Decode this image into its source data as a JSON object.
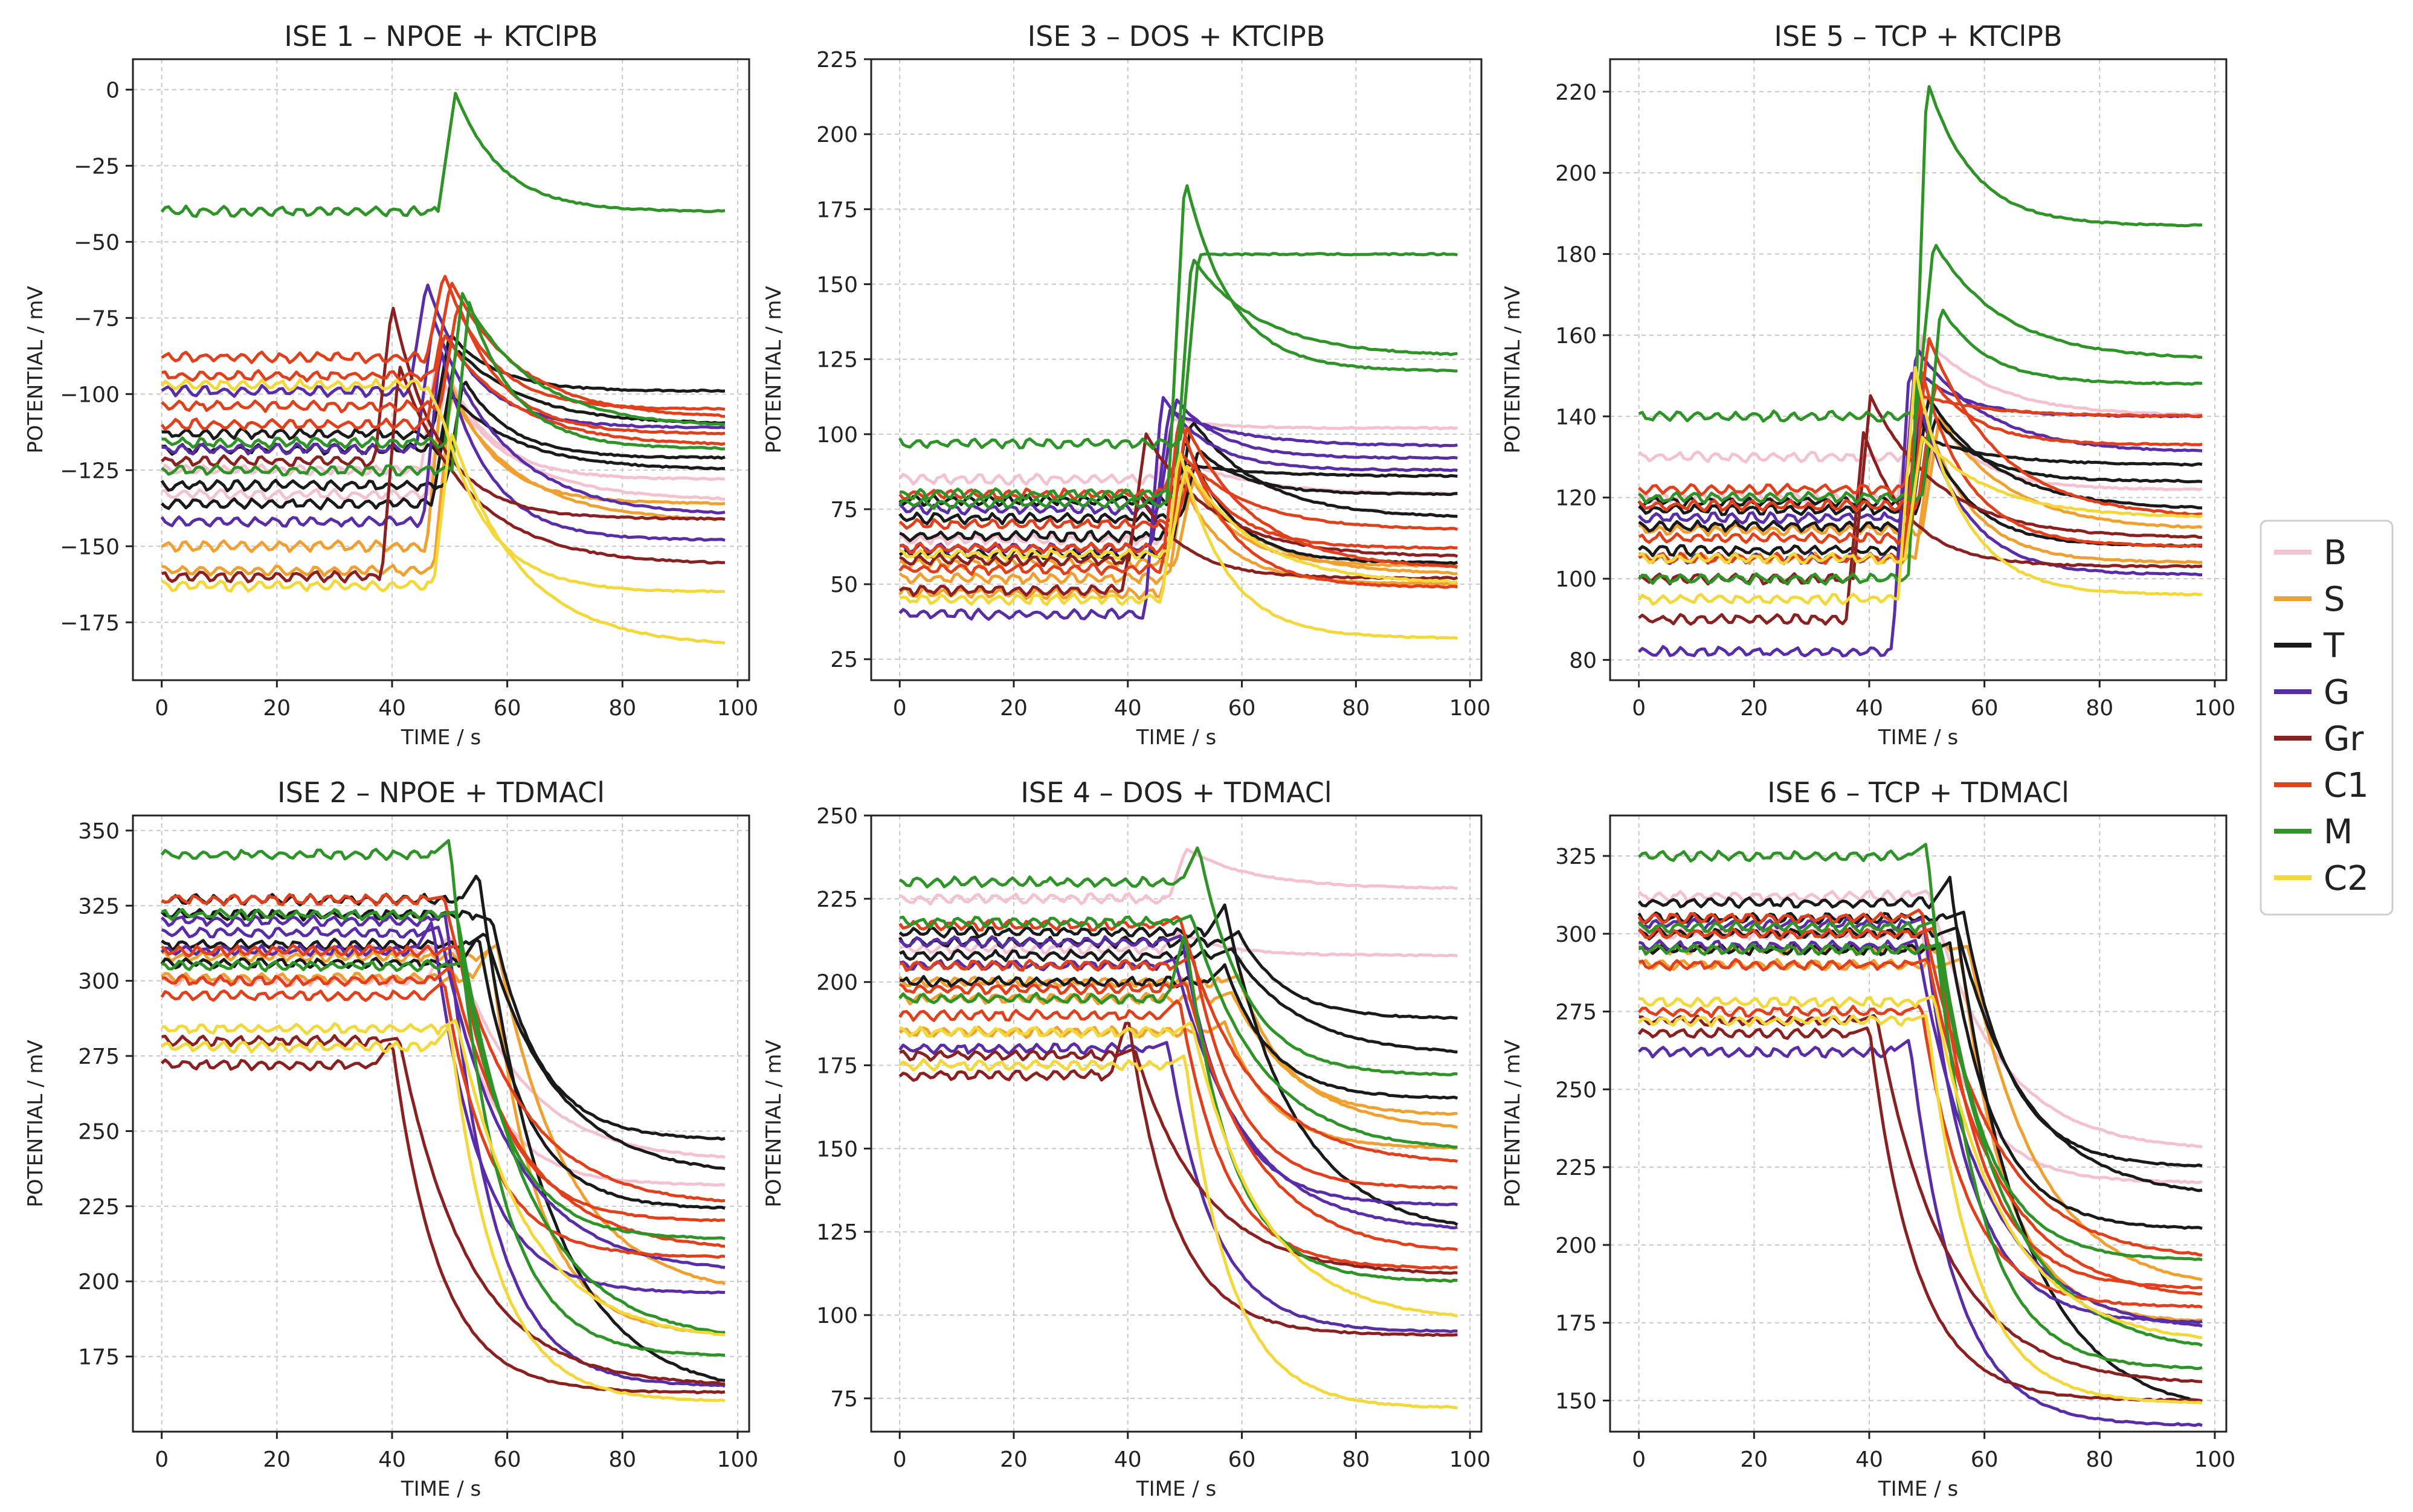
{
  "legend": {
    "items": [
      {
        "label": "B",
        "color": "#F4C2CF"
      },
      {
        "label": "S",
        "color": "#F0A030"
      },
      {
        "label": "T",
        "color": "#1A1A1A"
      },
      {
        "label": "G",
        "color": "#5A2DA8"
      },
      {
        "label": "Gr",
        "color": "#8B2020"
      },
      {
        "label": "C1",
        "color": "#E0401C"
      },
      {
        "label": "M",
        "color": "#2E9428"
      },
      {
        "label": "C2",
        "color": "#F2D83A"
      }
    ]
  },
  "chart_data": [
    {
      "type": "line",
      "title": "ISE 1 – NPOE + KTClPB",
      "xlabel": "TIME / s",
      "ylabel": "POTENTIAL / mV",
      "xlim": [
        -5,
        102
      ],
      "ylim": [
        -194,
        10
      ],
      "xticks": [
        0,
        20,
        40,
        60,
        80,
        100
      ],
      "yticks": [
        0,
        -25,
        -50,
        -75,
        -100,
        -125,
        -150,
        -175
      ],
      "grid": true,
      "series": [
        {
          "name": "B",
          "pre": [
            -125,
            -133
          ],
          "tjump": 46,
          "peak": [
            -85,
            -97
          ],
          "final": [
            -128,
            -135
          ]
        },
        {
          "name": "S",
          "pre": [
            -150,
            -158
          ],
          "tjump": 47,
          "peak": [
            -90,
            -100
          ],
          "final": [
            -136,
            -142
          ]
        },
        {
          "name": "T",
          "pre": [
            -113,
            -118,
            -130,
            -136
          ],
          "tjump": 48,
          "peak": [
            -80,
            -85,
            -95,
            -100
          ],
          "final": [
            -99,
            -110,
            -121,
            -125
          ]
        },
        {
          "name": "G",
          "pre": [
            -99,
            -118,
            -142
          ],
          "tjump": 44,
          "peak": [
            -63,
            -75,
            -85
          ],
          "final": [
            -111,
            -140,
            -148
          ]
        },
        {
          "name": "Gr",
          "pre": [
            -122,
            -160
          ],
          "tjump": 38,
          "peak": [
            -70,
            -90
          ],
          "final": [
            -141,
            -156
          ]
        },
        {
          "name": "C1",
          "pre": [
            -88,
            -94,
            -104,
            -110
          ],
          "tjump": 47,
          "peak": [
            -60,
            -63,
            -70,
            -80
          ],
          "final": [
            -105,
            -108,
            -113,
            -117
          ]
        },
        {
          "name": "M",
          "pre": [
            -40,
            -116,
            -125
          ],
          "tjump": 49,
          "peak": [
            -1,
            -67,
            -70
          ],
          "final": [
            -40,
            -111,
            -118
          ]
        },
        {
          "name": "C2",
          "pre": [
            -97,
            -163
          ],
          "tjump": 47,
          "peak": [
            -109,
            -112
          ],
          "final": [
            -165,
            -183
          ]
        }
      ]
    },
    {
      "type": "line",
      "title": "ISE 3 – DOS + KTClPB",
      "xlabel": "TIME / s",
      "ylabel": "POTENTIAL / mV",
      "xlim": [
        -5,
        102
      ],
      "ylim": [
        18,
        225
      ],
      "xticks": [
        0,
        20,
        40,
        60,
        80,
        100
      ],
      "yticks": [
        25,
        50,
        75,
        100,
        125,
        150,
        175,
        200,
        225
      ],
      "grid": true,
      "series": [
        {
          "name": "B",
          "pre": [
            85,
            65
          ],
          "tjump": 46,
          "peak": [
            105,
            92
          ],
          "final": [
            102,
            80
          ]
        },
        {
          "name": "S",
          "pre": [
            47,
            52,
            57
          ],
          "tjump": 47,
          "peak": [
            86,
            88,
            85
          ],
          "final": [
            50,
            53,
            56
          ]
        },
        {
          "name": "T",
          "pre": [
            60,
            66,
            72,
            78
          ],
          "tjump": 48,
          "peak": [
            99,
            105,
            95,
            90
          ],
          "final": [
            57,
            72,
            80,
            86
          ]
        },
        {
          "name": "G",
          "pre": [
            40,
            62,
            75
          ],
          "tjump": 44,
          "peak": [
            113,
            108,
            112
          ],
          "final": [
            88,
            96,
            92
          ]
        },
        {
          "name": "Gr",
          "pre": [
            48,
            58
          ],
          "tjump": 40,
          "peak": [
            80,
            100
          ],
          "final": [
            52,
            59
          ]
        },
        {
          "name": "C1",
          "pre": [
            55,
            62,
            70,
            80
          ],
          "tjump": 47,
          "peak": [
            107,
            103,
            90,
            94
          ],
          "final": [
            49,
            55,
            62,
            68
          ]
        },
        {
          "name": "M",
          "pre": [
            77,
            80,
            97
          ],
          "tjump": 48,
          "peak": [
            186,
            159,
            160
          ],
          "final": [
            121,
            126,
            160
          ]
        },
        {
          "name": "C2",
          "pre": [
            45,
            60
          ],
          "tjump": 47,
          "peak": [
            95,
            90
          ],
          "final": [
            32,
            50
          ]
        }
      ]
    },
    {
      "type": "line",
      "title": "ISE 5 – TCP + KTClPB",
      "xlabel": "TIME / s",
      "ylabel": "POTENTIAL / mV",
      "xlim": [
        -5,
        102
      ],
      "ylim": [
        75,
        228
      ],
      "xticks": [
        0,
        20,
        40,
        60,
        80,
        100
      ],
      "yticks": [
        80,
        100,
        120,
        140,
        160,
        180,
        200,
        220
      ],
      "grid": true,
      "series": [
        {
          "name": "B",
          "pre": [
            120,
            130
          ],
          "tjump": 46,
          "peak": [
            150,
            160
          ],
          "final": [
            122,
            140
          ]
        },
        {
          "name": "S",
          "pre": [
            105,
            112
          ],
          "tjump": 49,
          "peak": [
            135,
            140
          ],
          "final": [
            104,
            112
          ]
        },
        {
          "name": "T",
          "pre": [
            107,
            113,
            117,
            119
          ],
          "tjump": 47,
          "peak": [
            140,
            145,
            140,
            135
          ],
          "final": [
            108,
            117,
            124,
            128
          ]
        },
        {
          "name": "G",
          "pre": [
            82,
            105,
            115
          ],
          "tjump": 45,
          "peak": [
            153,
            157,
            150
          ],
          "final": [
            101,
            131,
            140
          ]
        },
        {
          "name": "Gr",
          "pre": [
            90,
            100
          ],
          "tjump": 37,
          "peak": [
            136,
            145
          ],
          "final": [
            103,
            110
          ]
        },
        {
          "name": "C1",
          "pre": [
            105,
            110,
            118,
            122
          ],
          "tjump": 47,
          "peak": [
            152,
            160,
            148,
            145
          ],
          "final": [
            108,
            115,
            133,
            140
          ]
        },
        {
          "name": "M",
          "pre": [
            100,
            140,
            120
          ],
          "tjump": 48,
          "peak": [
            223,
            183,
            167
          ],
          "final": [
            187,
            154,
            148
          ]
        },
        {
          "name": "C2",
          "pre": [
            95,
            105
          ],
          "tjump": 46,
          "peak": [
            152,
            135
          ],
          "final": [
            96,
            115
          ]
        }
      ]
    },
    {
      "type": "line",
      "title": "ISE 2 – NPOE + TDMACl",
      "xlabel": "TIME / s",
      "ylabel": "POTENTIAL / mV",
      "xlim": [
        -5,
        102
      ],
      "ylim": [
        150,
        355
      ],
      "xticks": [
        0,
        20,
        40,
        60,
        80,
        100
      ],
      "yticks": [
        175,
        200,
        225,
        250,
        275,
        300,
        325,
        350
      ],
      "grid": true,
      "series": [
        {
          "name": "B",
          "pre": [
            300,
            310
          ],
          "tjump": 47,
          "peak": [
            312,
            315
          ],
          "final": [
            232,
            240
          ]
        },
        {
          "name": "S",
          "pre": [
            301,
            308
          ],
          "tjump": 55,
          "peak": [
            311,
            312
          ],
          "final": [
            182,
            195
          ]
        },
        {
          "name": "T",
          "pre": [
            306,
            312,
            322,
            327
          ],
          "tjump": 53,
          "peak": [
            315,
            316,
            320,
            336
          ],
          "final": [
            224,
            235,
            247,
            162
          ]
        },
        {
          "name": "G",
          "pre": [
            310,
            316,
            320
          ],
          "tjump": 45,
          "peak": [
            320,
            318,
            322
          ],
          "final": [
            196,
            203,
            165
          ]
        },
        {
          "name": "Gr",
          "pre": [
            272,
            280
          ],
          "tjump": 38,
          "peak": [
            280,
            281
          ],
          "final": [
            163,
            165
          ]
        },
        {
          "name": "C1",
          "pre": [
            295,
            300,
            310,
            327
          ],
          "tjump": 47,
          "peak": [
            300,
            305,
            312,
            328
          ],
          "final": [
            208,
            210,
            220,
            225
          ]
        },
        {
          "name": "M",
          "pre": [
            342,
            322,
            305
          ],
          "tjump": 48,
          "peak": [
            347,
            323,
            306
          ],
          "final": [
            175,
            180,
            214
          ]
        },
        {
          "name": "C2",
          "pre": [
            278,
            284
          ],
          "tjump": 48,
          "peak": [
            285,
            287
          ],
          "final": [
            160,
            180
          ]
        }
      ]
    },
    {
      "type": "line",
      "title": "ISE 4 – DOS + TDMACl",
      "xlabel": "TIME / s",
      "ylabel": "POTENTIAL / mV",
      "xlim": [
        -5,
        102
      ],
      "ylim": [
        65,
        250
      ],
      "xticks": [
        0,
        20,
        40,
        60,
        80,
        100
      ],
      "yticks": [
        75,
        100,
        125,
        150,
        175,
        200,
        225,
        250
      ],
      "grid": true,
      "series": [
        {
          "name": "B",
          "pre": [
            210,
            225
          ],
          "tjump": 47,
          "peak": [
            215,
            240
          ],
          "final": [
            208,
            228
          ]
        },
        {
          "name": "S",
          "pre": [
            185,
            195,
            200
          ],
          "tjump": 55,
          "peak": [
            188,
            197,
            202
          ],
          "final": [
            150,
            155,
            160
          ]
        },
        {
          "name": "T",
          "pre": [
            200,
            208,
            212,
            215
          ],
          "tjump": 55,
          "peak": [
            205,
            210,
            215,
            223
          ],
          "final": [
            165,
            178,
            189,
            124
          ]
        },
        {
          "name": "G",
          "pre": [
            180,
            205,
            212
          ],
          "tjump": 45,
          "peak": [
            182,
            207,
            214
          ],
          "final": [
            95,
            125,
            133
          ]
        },
        {
          "name": "Gr",
          "pre": [
            172,
            178
          ],
          "tjump": 38,
          "peak": [
            190,
            180
          ],
          "final": [
            94,
            112
          ]
        },
        {
          "name": "C1",
          "pre": [
            190,
            198,
            205,
            217
          ],
          "tjump": 47,
          "peak": [
            195,
            200,
            208,
            220
          ],
          "final": [
            114,
            118,
            138,
            145
          ]
        },
        {
          "name": "M",
          "pre": [
            195,
            218,
            230
          ],
          "tjump": 48,
          "peak": [
            215,
            220,
            241
          ],
          "final": [
            110,
            149,
            172
          ]
        },
        {
          "name": "C2",
          "pre": [
            175,
            185
          ],
          "tjump": 48,
          "peak": [
            178,
            188
          ],
          "final": [
            72,
            98
          ]
        }
      ]
    },
    {
      "type": "line",
      "title": "ISE 6 – TCP + TDMACl",
      "xlabel": "TIME / s",
      "ylabel": "POTENTIAL / mV",
      "xlim": [
        -5,
        102
      ],
      "ylim": [
        140,
        338
      ],
      "xticks": [
        0,
        20,
        40,
        60,
        80,
        100
      ],
      "yticks": [
        150,
        175,
        200,
        225,
        250,
        275,
        300,
        325
      ],
      "grid": true,
      "series": [
        {
          "name": "B",
          "pre": [
            300,
            312
          ],
          "tjump": 47,
          "peak": [
            302,
            314
          ],
          "final": [
            220,
            230
          ]
        },
        {
          "name": "S",
          "pre": [
            290,
            295
          ],
          "tjump": 54,
          "peak": [
            292,
            296
          ],
          "final": [
            175,
            185
          ]
        },
        {
          "name": "T",
          "pre": [
            295,
            300,
            305,
            310
          ],
          "tjump": 52,
          "peak": [
            297,
            302,
            307,
            318
          ],
          "final": [
            205,
            215,
            225,
            145
          ]
        },
        {
          "name": "G",
          "pre": [
            262,
            296,
            303
          ],
          "tjump": 45,
          "peak": [
            266,
            298,
            305
          ],
          "final": [
            142,
            172,
            175
          ]
        },
        {
          "name": "Gr",
          "pre": [
            268,
            272
          ],
          "tjump": 38,
          "peak": [
            270,
            274
          ],
          "final": [
            150,
            155
          ]
        },
        {
          "name": "C1",
          "pre": [
            275,
            290,
            300,
            305
          ],
          "tjump": 47,
          "peak": [
            277,
            292,
            302,
            308
          ],
          "final": [
            180,
            182,
            186,
            195
          ]
        },
        {
          "name": "M",
          "pre": [
            325,
            302,
            295
          ],
          "tjump": 48,
          "peak": [
            329,
            304,
            297
          ],
          "final": [
            160,
            165,
            195
          ]
        },
        {
          "name": "C2",
          "pre": [
            272,
            278
          ],
          "tjump": 48,
          "peak": [
            274,
            280
          ],
          "final": [
            149,
            168
          ]
        }
      ]
    }
  ]
}
